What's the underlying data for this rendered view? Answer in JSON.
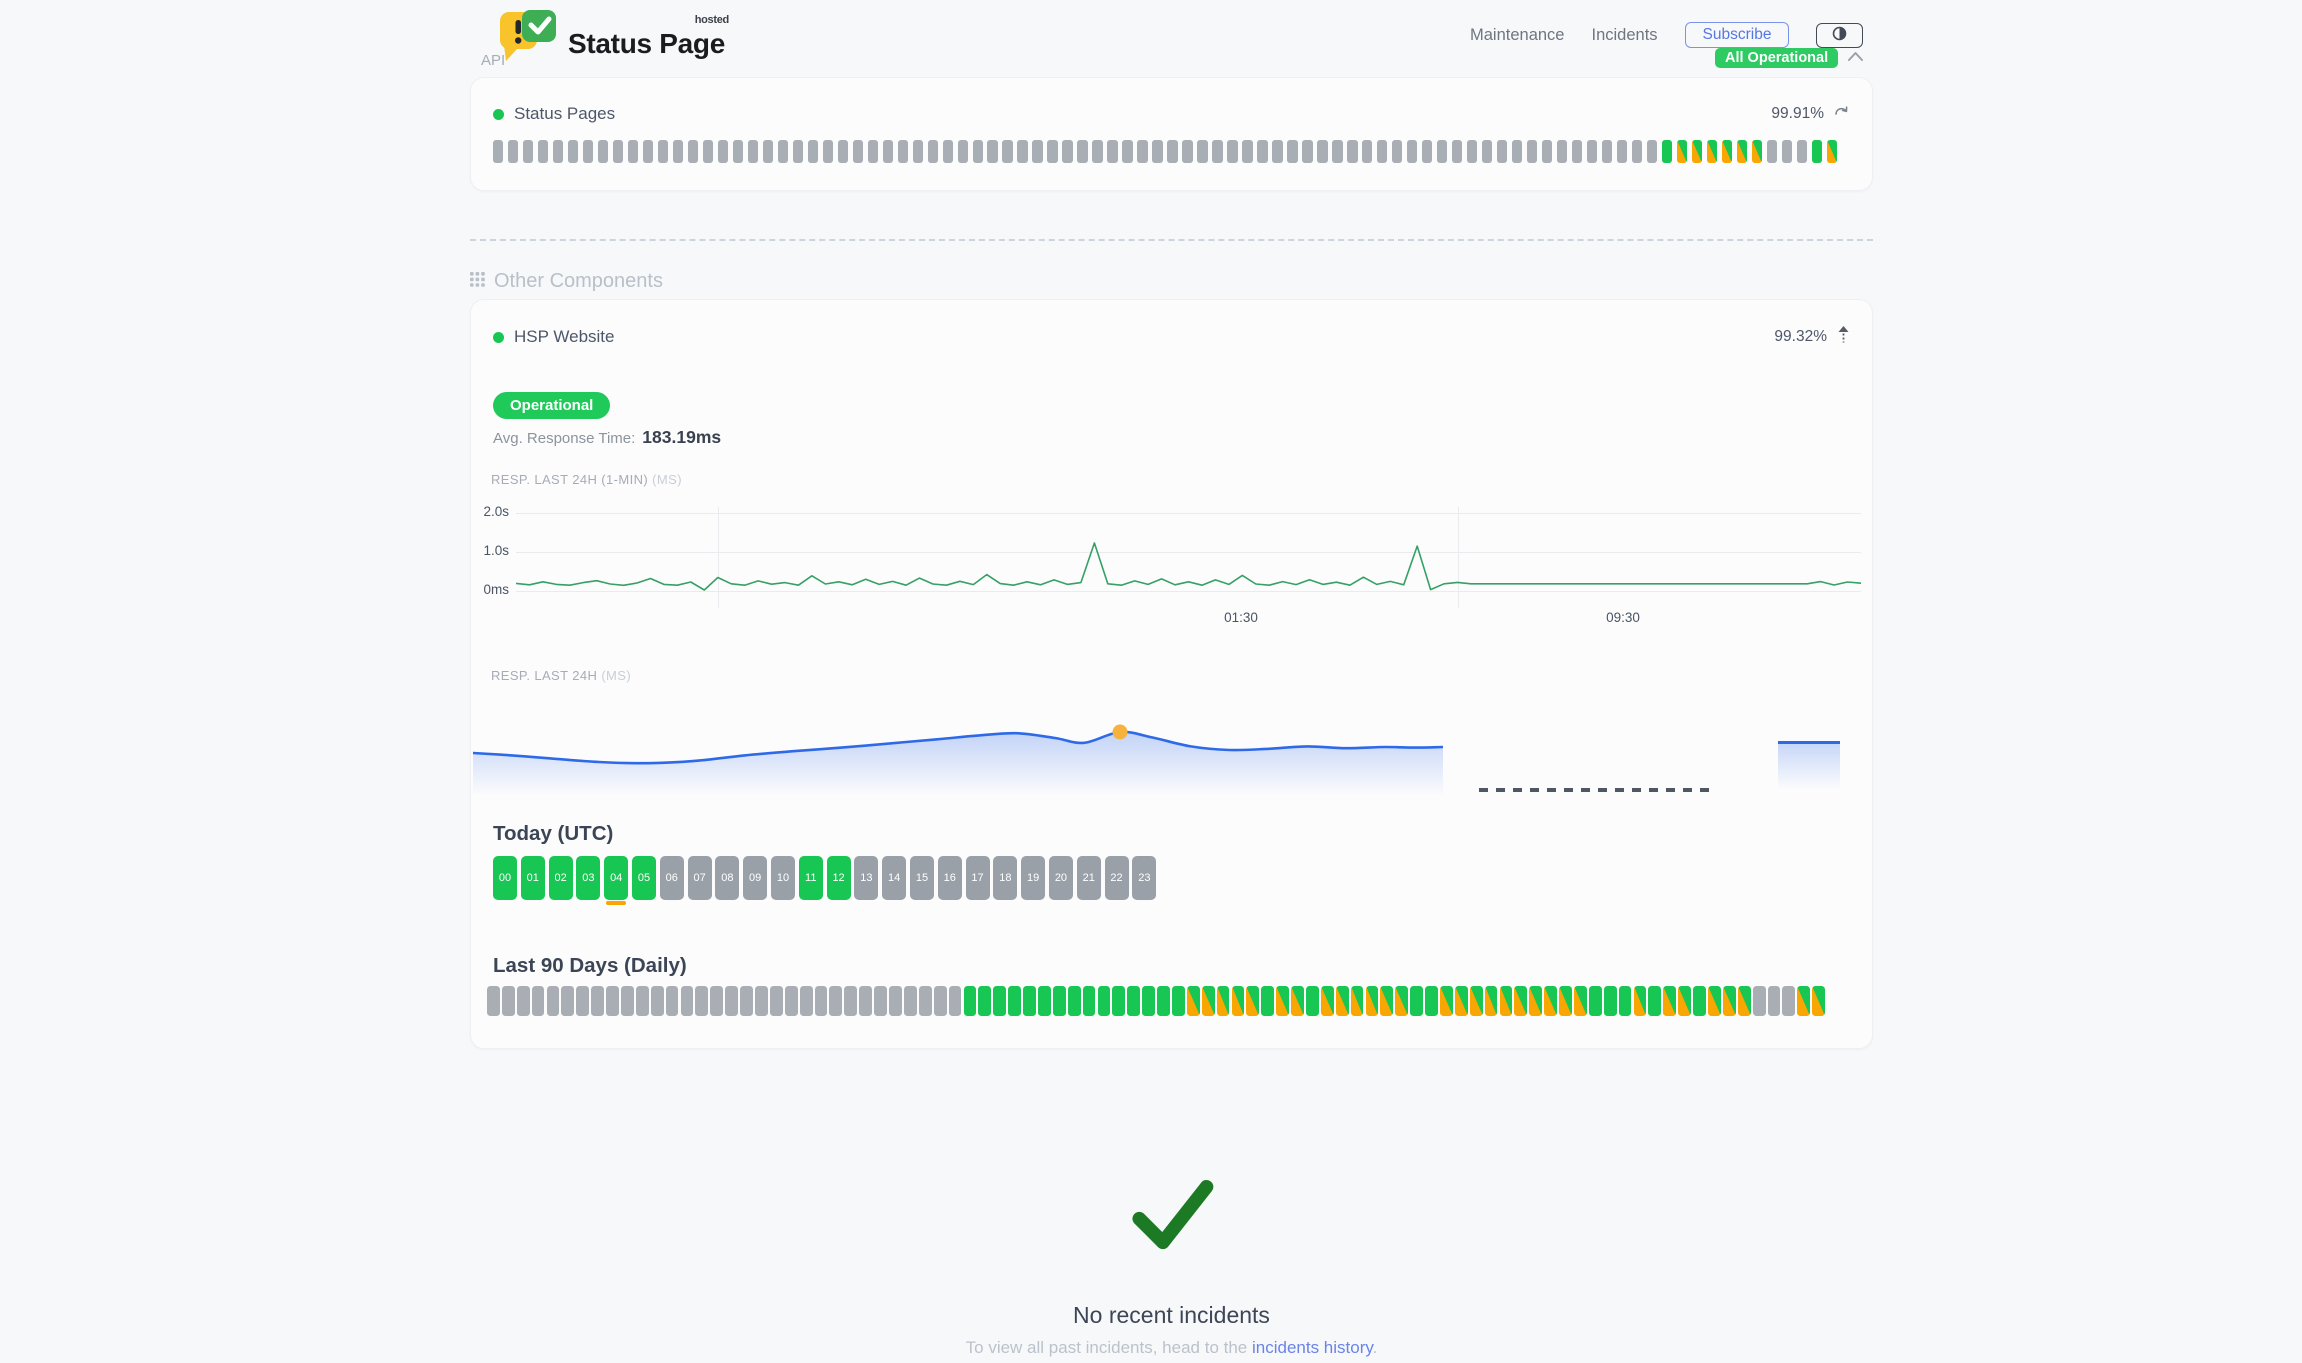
{
  "theme": {
    "green": "#17c653",
    "orange": "#f7a602",
    "gray_bar": "#a9adb4",
    "badge_green": "#2ecb63",
    "blue_line": "#2e6ae8",
    "chart_green": "#36a065",
    "marker_yellow": "#f6b23c",
    "link_blue": "#6b84e8",
    "check_green": "#1d7a24"
  },
  "brand": {
    "title": "Status Page",
    "tag": "hosted"
  },
  "nav": {
    "items": [
      "Maintenance",
      "Incidents"
    ],
    "subscribe": "Subscribe",
    "status_badge": "All Operational"
  },
  "api_section": {
    "label": "API",
    "name": "Status Pages",
    "uptime": "99.91%",
    "bar_legend": {
      "x": "gray-nodata",
      "g": "green-operational",
      "m": "green-orange-mixed"
    },
    "bars": "xxxxxxxxxxxxxxxxxxxxxxxxxxxxxxxxxxxxxxxxxxxxxxxxxxxxxxxxxxxxxxxxxxxxxxxxxxxxxxgmmmmmmxxxgm"
  },
  "other_section": {
    "label": "Other Components"
  },
  "hsp": {
    "name": "HSP Website",
    "uptime": "99.32%",
    "status": "Operational",
    "avg_label": "Avg. Response Time:",
    "avg_value": "183.19ms"
  },
  "chart_data": [
    {
      "type": "line",
      "title": "RESP. LAST 24H (1-MIN)",
      "unit": "(MS)",
      "y_ticks": [
        "2.0s",
        "1.0s",
        "0ms"
      ],
      "y_tick_values_ms": [
        2000,
        1000,
        0
      ],
      "ylim_ms": [
        0,
        2200
      ],
      "x_ticks": [
        {
          "label": "01:30",
          "pos_pct": 53.9
        },
        {
          "label": "09:30",
          "pos_pct": 82.3
        }
      ],
      "v_gridlines_pct": [
        15.0,
        70.0
      ],
      "line_color": "#36a065",
      "values_ms": [
        195,
        160,
        235,
        170,
        150,
        215,
        265,
        180,
        145,
        205,
        320,
        170,
        150,
        230,
        25,
        345,
        185,
        150,
        260,
        175,
        215,
        150,
        390,
        180,
        235,
        160,
        300,
        170,
        245,
        150,
        330,
        180,
        150,
        250,
        165,
        420,
        190,
        150,
        235,
        160,
        285,
        170,
        215,
        1230,
        185,
        150,
        260,
        170,
        310,
        160,
        235,
        150,
        285,
        170,
        400,
        180,
        150,
        240,
        165,
        290,
        170,
        225,
        150,
        355,
        170,
        245,
        160,
        1150,
        35,
        185,
        220,
        185,
        185,
        185,
        185,
        185,
        185,
        185,
        185,
        185,
        185,
        185,
        185,
        185,
        185,
        185,
        185,
        185,
        185,
        185,
        185,
        185,
        185,
        185,
        185,
        185,
        185,
        240,
        155,
        230,
        200
      ]
    },
    {
      "type": "area",
      "title": "RESP. LAST 24H",
      "unit": "(MS)",
      "line_color": "#2e6ae8",
      "fill_color": "#2e6ae8",
      "marker": {
        "x_pct": 66.7,
        "value_ms": 200,
        "color": "#f6b23c"
      },
      "points": [
        [
          0,
          130
        ],
        [
          4,
          122
        ],
        [
          8,
          112
        ],
        [
          13,
          100
        ],
        [
          18,
          96
        ],
        [
          23,
          104
        ],
        [
          28,
          122
        ],
        [
          33,
          136
        ],
        [
          38,
          148
        ],
        [
          43,
          162
        ],
        [
          48,
          176
        ],
        [
          52,
          188
        ],
        [
          56,
          196
        ],
        [
          60,
          180
        ],
        [
          63,
          164
        ],
        [
          66.7,
          200
        ],
        [
          70,
          182
        ],
        [
          74,
          152
        ],
        [
          78,
          140
        ],
        [
          82,
          144
        ],
        [
          86,
          152
        ],
        [
          90,
          146
        ],
        [
          94,
          150
        ],
        [
          97,
          148
        ],
        [
          100,
          150
        ]
      ],
      "gap_segment": "dashed-no-data",
      "right_segment_value_ms": 170
    }
  ],
  "today": {
    "label": "Today (UTC)",
    "hours": [
      {
        "h": "00",
        "s": "g"
      },
      {
        "h": "01",
        "s": "g"
      },
      {
        "h": "02",
        "s": "g"
      },
      {
        "h": "03",
        "s": "g"
      },
      {
        "h": "04",
        "s": "g",
        "marker": true
      },
      {
        "h": "05",
        "s": "g"
      },
      {
        "h": "06",
        "s": "x"
      },
      {
        "h": "07",
        "s": "x"
      },
      {
        "h": "08",
        "s": "x"
      },
      {
        "h": "09",
        "s": "x"
      },
      {
        "h": "10",
        "s": "x"
      },
      {
        "h": "11",
        "s": "g"
      },
      {
        "h": "12",
        "s": "g"
      },
      {
        "h": "13",
        "s": "x"
      },
      {
        "h": "14",
        "s": "x"
      },
      {
        "h": "15",
        "s": "x"
      },
      {
        "h": "16",
        "s": "x"
      },
      {
        "h": "17",
        "s": "x"
      },
      {
        "h": "18",
        "s": "x"
      },
      {
        "h": "19",
        "s": "x"
      },
      {
        "h": "20",
        "s": "x"
      },
      {
        "h": "21",
        "s": "x"
      },
      {
        "h": "22",
        "s": "x"
      },
      {
        "h": "23",
        "s": "x"
      }
    ]
  },
  "last90": {
    "label": "Last 90 Days (Daily)",
    "bars": "xxxxxxxxxxxxxxxxxxxxxxxxxxxxxxxxgggggggggggggggmmmmmgmmgmmmmmmggmmmmmmmmmmgggmgmmgmmmxxxmm"
  },
  "incidents": {
    "title": "No recent incidents",
    "prefix": "To view all past incidents, head to the ",
    "link": "incidents history",
    "suffix": "."
  }
}
